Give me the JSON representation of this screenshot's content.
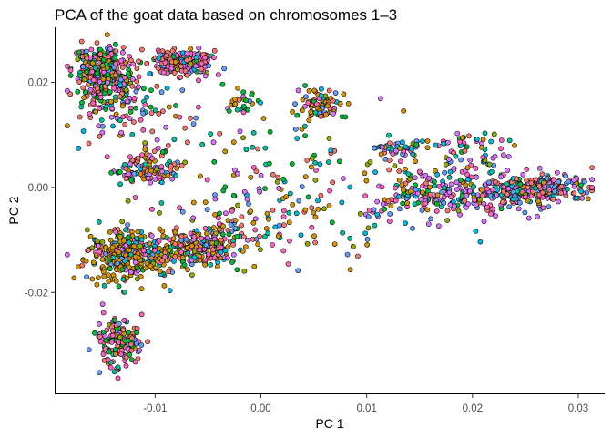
{
  "chart_data": {
    "type": "scatter",
    "title": "PCA of the goat data based on chromosomes 1–3",
    "xlabel": "PC 1",
    "ylabel": "PC 2",
    "xlim": [
      -0.0195,
      0.0325
    ],
    "ylim": [
      -0.0392,
      0.0305
    ],
    "xticks": [
      -0.01,
      0.0,
      0.01,
      0.02,
      0.03
    ],
    "xtick_labels": [
      "-0.01",
      "0.00",
      "0.01",
      "0.02",
      "0.03"
    ],
    "yticks": [
      -0.02,
      0.0,
      0.02
    ],
    "ytick_labels": [
      "-0.02",
      "0.00",
      "0.02"
    ],
    "grid": false,
    "legend": "none",
    "series_colors": [
      "#F8766D",
      "#D39200",
      "#93AA00",
      "#00BA38",
      "#00C19F",
      "#00B9E3",
      "#619CFF",
      "#DB72FB",
      "#FF61C3"
    ],
    "point_groups": [
      {
        "name": "",
        "center": [
          -0.0145,
          0.0205
        ],
        "spread": [
          0.0016,
          0.0034
        ],
        "n": 300,
        "weights": [
          4,
          1,
          1,
          3,
          1,
          1,
          1,
          2,
          4
        ]
      },
      {
        "name": "",
        "center": [
          -0.0157,
          0.0232
        ],
        "spread": [
          0.001,
          0.0014
        ],
        "n": 60,
        "weights": [
          2,
          1,
          2,
          3,
          1,
          1,
          1,
          1,
          2
        ]
      },
      {
        "name": "",
        "center": [
          -0.0073,
          0.0238
        ],
        "spread": [
          0.0013,
          0.0013
        ],
        "n": 220,
        "weights": [
          6,
          1,
          1,
          1,
          1,
          1,
          1,
          2,
          5
        ]
      },
      {
        "name": "",
        "center": [
          -0.0105,
          0.0035
        ],
        "spread": [
          0.0013,
          0.0012
        ],
        "n": 110,
        "weights": [
          3,
          3,
          1,
          1,
          1,
          1,
          2,
          3,
          2
        ]
      },
      {
        "name": "",
        "center": [
          -0.0127,
          -0.013
        ],
        "spread": [
          0.002,
          0.0025
        ],
        "n": 320,
        "weights": [
          1,
          8,
          1,
          1,
          1,
          1,
          1,
          1,
          1
        ]
      },
      {
        "name": "",
        "center": [
          -0.0058,
          -0.0118
        ],
        "spread": [
          0.0022,
          0.002
        ],
        "n": 230,
        "weights": [
          3,
          5,
          1,
          1,
          1,
          2,
          1,
          2,
          2
        ]
      },
      {
        "name": "",
        "center": [
          -0.0133,
          -0.0298
        ],
        "spread": [
          0.0011,
          0.0024
        ],
        "n": 150,
        "weights": [
          4,
          1,
          1,
          4,
          1,
          1,
          2,
          1,
          5
        ]
      },
      {
        "name": "",
        "center": [
          0.0058,
          0.016
        ],
        "spread": [
          0.0012,
          0.0014
        ],
        "n": 80,
        "weights": [
          2,
          5,
          1,
          1,
          2,
          1,
          1,
          1,
          1
        ]
      },
      {
        "name": "",
        "center": [
          -0.002,
          0.016
        ],
        "spread": [
          0.0008,
          0.001
        ],
        "n": 25,
        "weights": [
          1,
          3,
          1,
          1,
          2,
          1,
          1,
          1,
          1
        ]
      },
      {
        "name": "",
        "center": [
          0.019,
          -0.0015
        ],
        "spread": [
          0.0045,
          0.0018
        ],
        "n": 260,
        "weights": [
          2,
          1,
          1,
          2,
          1,
          2,
          3,
          6,
          3
        ]
      },
      {
        "name": "",
        "center": [
          0.0265,
          0.0
        ],
        "spread": [
          0.0022,
          0.0012
        ],
        "n": 200,
        "weights": [
          5,
          2,
          1,
          1,
          1,
          2,
          3,
          2,
          3
        ]
      },
      {
        "name": "",
        "center": [
          0.013,
          0.0075
        ],
        "spread": [
          0.0015,
          0.001
        ],
        "n": 45,
        "weights": [
          1,
          1,
          1,
          1,
          3,
          4,
          2,
          3,
          1
        ]
      },
      {
        "name": "",
        "center": [
          0.0195,
          0.0085
        ],
        "spread": [
          0.002,
          0.001
        ],
        "n": 35,
        "weights": [
          1,
          3,
          1,
          1,
          1,
          2,
          1,
          4,
          3
        ]
      },
      {
        "name": "",
        "center": [
          0.02,
          0.004
        ],
        "spread": [
          0.0025,
          0.0015
        ],
        "n": 40,
        "weights": [
          1,
          2,
          1,
          1,
          1,
          2,
          2,
          5,
          2
        ]
      },
      {
        "name": "",
        "center": [
          0.005,
          0.0
        ],
        "spread": [
          0.0075,
          0.007
        ],
        "n": 190,
        "weights": [
          2,
          3,
          2,
          1,
          2,
          2,
          1,
          2,
          2
        ]
      },
      {
        "name": "",
        "center": [
          -0.011,
          0.012
        ],
        "spread": [
          0.0035,
          0.005
        ],
        "n": 70,
        "weights": [
          3,
          2,
          1,
          1,
          1,
          1,
          1,
          2,
          3
        ]
      },
      {
        "name": "",
        "center": [
          -0.002,
          -0.007
        ],
        "spread": [
          0.004,
          0.0025
        ],
        "n": 60,
        "weights": [
          2,
          4,
          1,
          1,
          1,
          1,
          1,
          1,
          2
        ]
      }
    ]
  }
}
